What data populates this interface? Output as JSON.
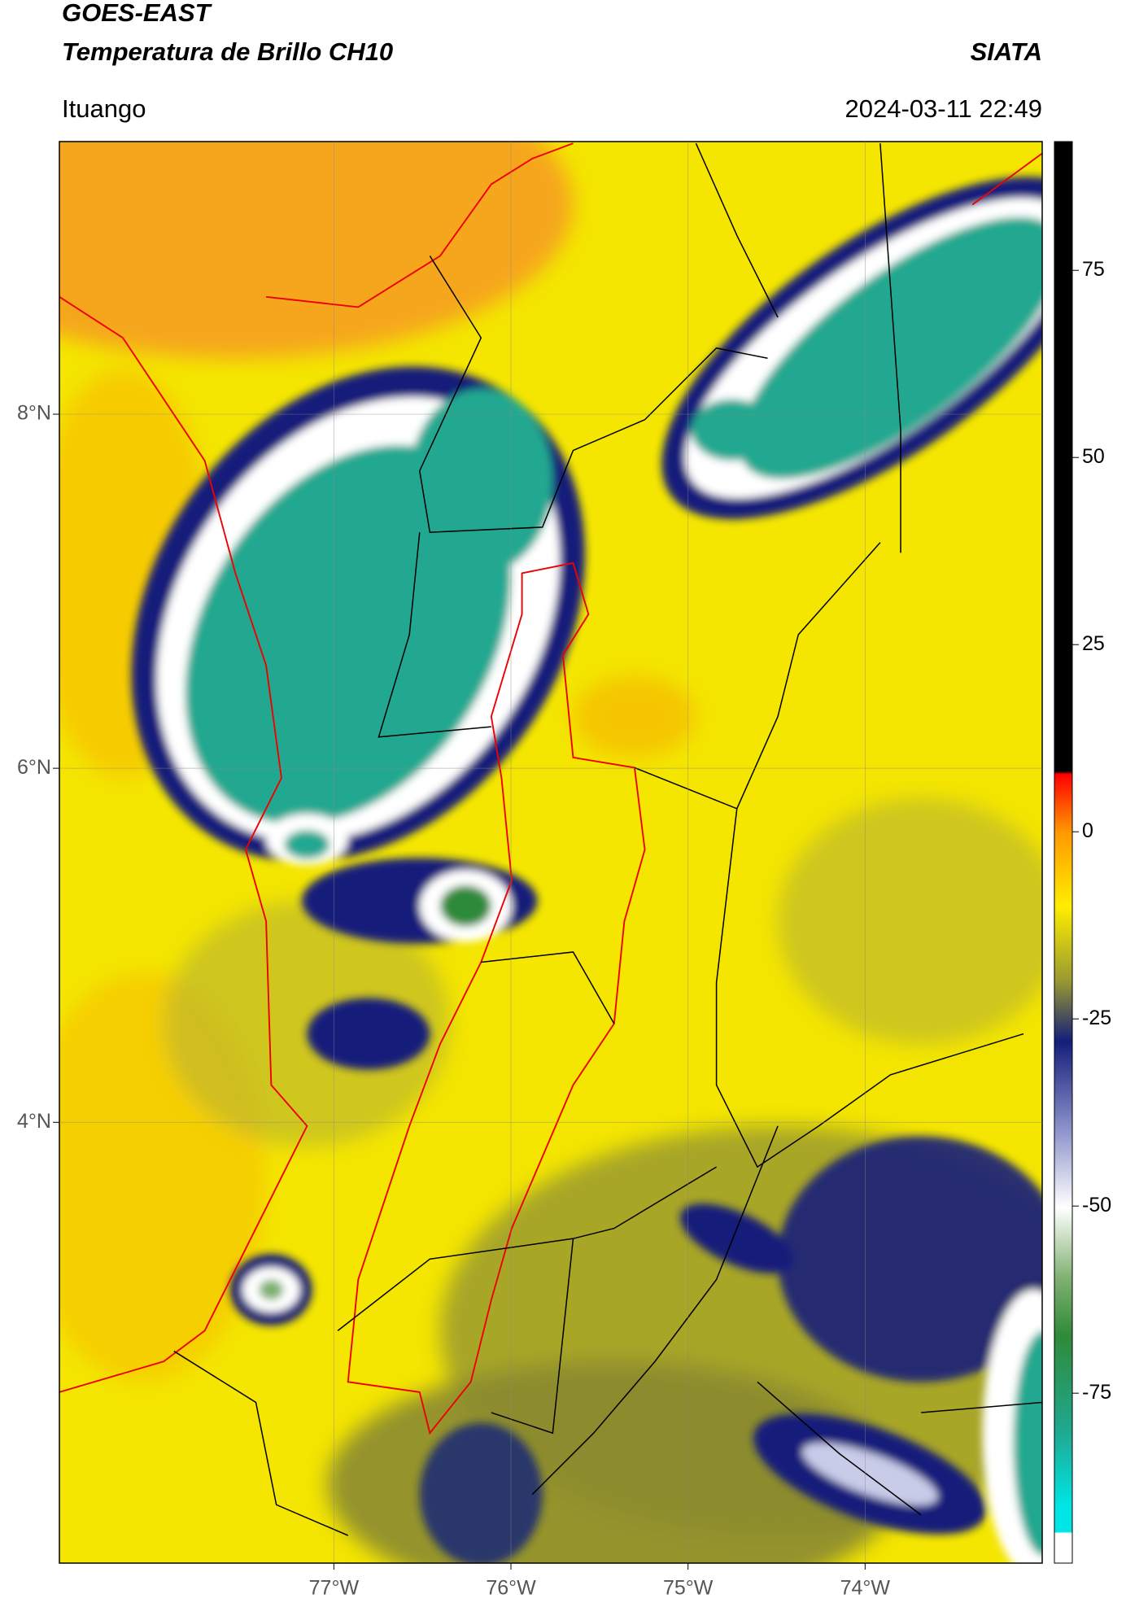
{
  "chart_data": {
    "type": "map",
    "title": "GOES-EAST",
    "subtitle": "Temperatura de Brillo CH10",
    "source": "SIATA",
    "location": "Ituango",
    "datetime": "2024-03-11 22:49",
    "xlim": [
      -78.55,
      -73.0
    ],
    "xticks": [
      {
        "value": -77,
        "label": "77°W"
      },
      {
        "value": -76,
        "label": "76°W"
      },
      {
        "value": -75,
        "label": "75°W"
      },
      {
        "value": -74,
        "label": "74°W"
      }
    ],
    "ylim": [
      1.51,
      9.54
    ],
    "yticks": [
      {
        "value": 8,
        "label": "8°N"
      },
      {
        "value": 6,
        "label": "6°N"
      },
      {
        "value": 4,
        "label": "4°N"
      }
    ],
    "colorbar": {
      "lim": [
        -97.7,
        92.2
      ],
      "ticks": [
        75,
        50,
        25,
        0,
        -25,
        -50,
        -75
      ]
    },
    "grid": true
  }
}
